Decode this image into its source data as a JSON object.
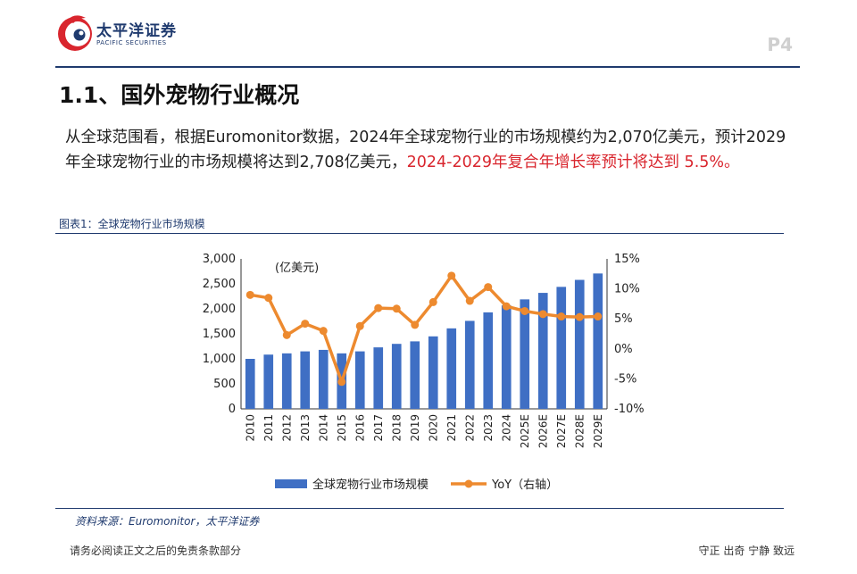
{
  "header": {
    "brand_cn": "太平洋证券",
    "brand_en": "PACIFIC SECURITIES",
    "page_number": "P4"
  },
  "section": {
    "title": "1.1、国外宠物行业概况"
  },
  "paragraph": {
    "text_normal": "从全球范围看，根据Euromonitor数据，2024年全球宠物行业的市场规模约为2,070亿美元，预计2029年全球宠物行业的市场规模将达到2,708亿美元，",
    "text_red": "2024-2029年复合年增长率预计将达到 5.5%。"
  },
  "figure": {
    "title": "图表1：全球宠物行业市场规模",
    "source": "资料来源：Euromonitor，太平洋证券"
  },
  "chart_data": {
    "type": "bar",
    "title": "",
    "unit_label": "(亿美元)",
    "categories": [
      "2010",
      "2011",
      "2012",
      "2013",
      "2014",
      "2015",
      "2016",
      "2017",
      "2018",
      "2019",
      "2020",
      "2021",
      "2022",
      "2023",
      "2024",
      "2025E",
      "2026E",
      "2027E",
      "2028E",
      "2029E"
    ],
    "series": [
      {
        "name": "全球宠物行业市场规模",
        "kind": "bar",
        "axis": "left",
        "color": "#3f6fc4",
        "values": [
          1000,
          1085,
          1110,
          1150,
          1180,
          1110,
          1150,
          1230,
          1300,
          1350,
          1450,
          1610,
          1760,
          1930,
          2070,
          2190,
          2320,
          2440,
          2580,
          2708
        ]
      },
      {
        "name": "YoY（右轴）",
        "kind": "line",
        "axis": "right",
        "color": "#ed8a2f",
        "values": [
          9.0,
          8.5,
          2.3,
          4.2,
          3.0,
          -5.5,
          3.8,
          6.8,
          6.7,
          4.0,
          7.8,
          12.2,
          8.0,
          10.3,
          7.1,
          6.3,
          5.8,
          5.4,
          5.3,
          5.4
        ]
      }
    ],
    "y_left": {
      "min": 0,
      "max": 3000,
      "ticks": [
        0,
        500,
        1000,
        1500,
        2000,
        2500,
        3000
      ],
      "tick_labels": [
        "0",
        "500",
        "1,000",
        "1,500",
        "2,000",
        "2,500",
        "3,000"
      ]
    },
    "y_right": {
      "min": -10,
      "max": 15,
      "ticks": [
        -10,
        -5,
        0,
        5,
        10,
        15
      ],
      "tick_labels": [
        "-10%",
        "-5%",
        "0%",
        "5%",
        "10%",
        "15%"
      ]
    },
    "legend": [
      "全球宠物行业市场规模",
      "YoY（右轴）"
    ],
    "legend_position": "bottom",
    "grid": false
  },
  "footer": {
    "disclaimer": "请务必阅读正文之后的免责条款部分",
    "motto": "守正 出奇 宁静 致远"
  },
  "colors": {
    "brand_navy": "#1f3a6e",
    "brand_red": "#d9262e",
    "bar_blue": "#3f6fc4",
    "line_orange": "#ed8a2f"
  }
}
